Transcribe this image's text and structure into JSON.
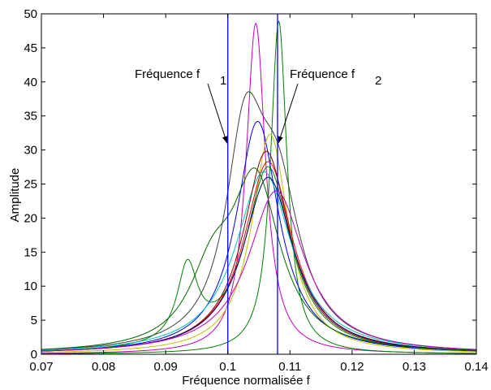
{
  "chart_data": {
    "type": "line",
    "xlabel": "Fréquence normalisée f",
    "ylabel": "Amplitude",
    "xlim": [
      0.07,
      0.14
    ],
    "ylim": [
      0,
      50
    ],
    "xticks": [
      "0.07",
      "0.08",
      "0.09",
      "0.1",
      "0.11",
      "0.12",
      "0.13",
      "0.14"
    ],
    "yticks": [
      "0",
      "5",
      "10",
      "15",
      "20",
      "25",
      "30",
      "35",
      "40",
      "45",
      "50"
    ],
    "grid": false,
    "vlines": [
      {
        "x": 0.1,
        "color": "#0000ff"
      },
      {
        "x": 0.108,
        "color": "#0000ff"
      }
    ],
    "annotations": [
      {
        "text": "Fréquence f",
        "sub": "1",
        "arrow_to": [
          0.1,
          31
        ]
      },
      {
        "text": "Fréquence f",
        "sub": "2",
        "arrow_to": [
          0.108,
          31
        ]
      }
    ],
    "series": [
      {
        "color": "#bf00bf",
        "peaks": [
          {
            "x": 0.1045,
            "a": 48.6,
            "w": 0.0019
          }
        ]
      },
      {
        "color": "#008000",
        "peaks": [
          {
            "x": 0.1082,
            "a": 48.9,
            "w": 0.0016
          }
        ]
      },
      {
        "color": "#0000ff",
        "peaks": [
          {
            "x": 0.1048,
            "a": 34.2,
            "w": 0.0042
          }
        ]
      },
      {
        "color": "#bfbf00",
        "peaks": [
          {
            "x": 0.1068,
            "a": 32.3,
            "w": 0.0036
          }
        ]
      },
      {
        "color": "#ff0000",
        "peaks": [
          {
            "x": 0.1065,
            "a": 28.3,
            "w": 0.0048
          }
        ]
      },
      {
        "color": "#404040",
        "peaks": [
          {
            "x": 0.1028,
            "a": 29.0,
            "w": 0.0038
          },
          {
            "x": 0.108,
            "a": 21.0,
            "w": 0.0045
          }
        ]
      },
      {
        "color": "#008000",
        "peaks": [
          {
            "x": 0.1065,
            "a": 27.3,
            "w": 0.0045
          },
          {
            "x": 0.0935,
            "a": 11.0,
            "w": 0.002
          }
        ]
      },
      {
        "color": "#00bfbf",
        "peaks": [
          {
            "x": 0.1058,
            "a": 26.8,
            "w": 0.0055
          }
        ]
      },
      {
        "color": "#8b0000",
        "peaks": [
          {
            "x": 0.1062,
            "a": 29.8,
            "w": 0.0046
          }
        ]
      },
      {
        "color": "#000080",
        "peaks": [
          {
            "x": 0.1065,
            "a": 26.0,
            "w": 0.005
          }
        ]
      },
      {
        "color": "#006400",
        "peaks": [
          {
            "x": 0.1045,
            "a": 24.5,
            "w": 0.0048
          },
          {
            "x": 0.0975,
            "a": 9.5,
            "w": 0.0045
          }
        ]
      },
      {
        "color": "#bf00bf",
        "peaks": [
          {
            "x": 0.1078,
            "a": 24.0,
            "w": 0.0055
          }
        ]
      }
    ]
  }
}
